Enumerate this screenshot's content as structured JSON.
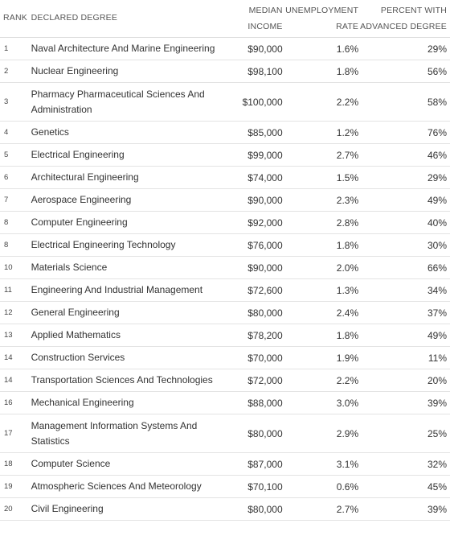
{
  "headers": {
    "rank": "RANK",
    "degree": "DECLARED DEGREE",
    "income_line1": "MEDIAN",
    "income_line2": "INCOME",
    "unemp_line1": "UNEMPLOYMENT",
    "unemp_line2": "RATE",
    "adv_line1": "PERCENT WITH",
    "adv_line2": "ADVANCED DEGREE"
  },
  "rows": [
    {
      "rank": "1",
      "degree": "Naval Architecture And Marine Engineering",
      "income": "$90,000",
      "unemployment": "1.6%",
      "advanced": "29%"
    },
    {
      "rank": "2",
      "degree": "Nuclear Engineering",
      "income": "$98,100",
      "unemployment": "1.8%",
      "advanced": "56%"
    },
    {
      "rank": "3",
      "degree": "Pharmacy Pharmaceutical Sciences And Administration",
      "income": "$100,000",
      "unemployment": "2.2%",
      "advanced": "58%"
    },
    {
      "rank": "4",
      "degree": "Genetics",
      "income": "$85,000",
      "unemployment": "1.2%",
      "advanced": "76%"
    },
    {
      "rank": "5",
      "degree": "Electrical Engineering",
      "income": "$99,000",
      "unemployment": "2.7%",
      "advanced": "46%"
    },
    {
      "rank": "6",
      "degree": "Architectural Engineering",
      "income": "$74,000",
      "unemployment": "1.5%",
      "advanced": "29%"
    },
    {
      "rank": "7",
      "degree": "Aerospace Engineering",
      "income": "$90,000",
      "unemployment": "2.3%",
      "advanced": "49%"
    },
    {
      "rank": "8",
      "degree": "Computer Engineering",
      "income": "$92,000",
      "unemployment": "2.8%",
      "advanced": "40%"
    },
    {
      "rank": "8",
      "degree": "Electrical Engineering Technology",
      "income": "$76,000",
      "unemployment": "1.8%",
      "advanced": "30%"
    },
    {
      "rank": "10",
      "degree": "Materials Science",
      "income": "$90,000",
      "unemployment": "2.0%",
      "advanced": "66%"
    },
    {
      "rank": "11",
      "degree": "Engineering And Industrial Management",
      "income": "$72,600",
      "unemployment": "1.3%",
      "advanced": "34%"
    },
    {
      "rank": "12",
      "degree": "General Engineering",
      "income": "$80,000",
      "unemployment": "2.4%",
      "advanced": "37%"
    },
    {
      "rank": "13",
      "degree": "Applied Mathematics",
      "income": "$78,200",
      "unemployment": "1.8%",
      "advanced": "49%"
    },
    {
      "rank": "14",
      "degree": "Construction Services",
      "income": "$70,000",
      "unemployment": "1.9%",
      "advanced": "11%"
    },
    {
      "rank": "14",
      "degree": "Transportation Sciences And Technologies",
      "income": "$72,000",
      "unemployment": "2.2%",
      "advanced": "20%"
    },
    {
      "rank": "16",
      "degree": "Mechanical Engineering",
      "income": "$88,000",
      "unemployment": "3.0%",
      "advanced": "39%"
    },
    {
      "rank": "17",
      "degree": "Management Information Systems And Statistics",
      "income": "$80,000",
      "unemployment": "2.9%",
      "advanced": "25%"
    },
    {
      "rank": "18",
      "degree": "Computer Science",
      "income": "$87,000",
      "unemployment": "3.1%",
      "advanced": "32%"
    },
    {
      "rank": "19",
      "degree": "Atmospheric Sciences And Meteorology",
      "income": "$70,100",
      "unemployment": "0.6%",
      "advanced": "45%"
    },
    {
      "rank": "20",
      "degree": "Civil Engineering",
      "income": "$80,000",
      "unemployment": "2.7%",
      "advanced": "39%"
    }
  ]
}
